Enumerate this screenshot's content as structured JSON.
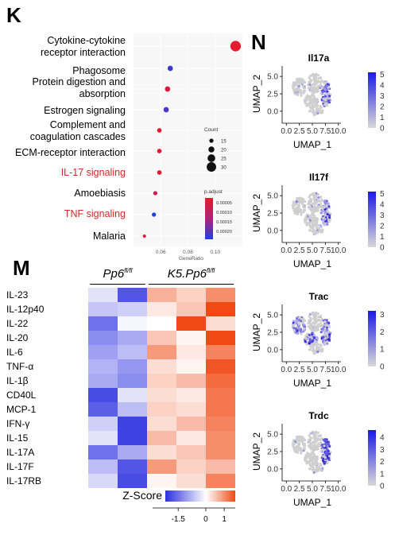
{
  "panels": {
    "K": "K",
    "M": "M",
    "N": "N"
  },
  "chart_data": [
    {
      "type": "scatter",
      "panel": "K",
      "xlabel": "GeneRatio",
      "xlim": [
        0.04,
        0.12
      ],
      "xticks": [
        "0.06",
        "0.08",
        "0.10"
      ],
      "xtick_values": [
        0.06,
        0.08,
        0.1
      ],
      "categories": [
        "Cytokine-cytokine\nreceptor interaction",
        "Phagosome",
        "Protein digestion and\nabsorption",
        "Estrogen signaling",
        "Complement and\ncoagulation cascades",
        "ECM-receptor interaction",
        "IL-17 signaling",
        "Amoebiasis",
        "TNF signaling",
        "Malaria"
      ],
      "highlighted": [
        "IL-17 signaling",
        "TNF signaling"
      ],
      "points": [
        {
          "x": 0.115,
          "count": 33,
          "padj": 5e-06
        },
        {
          "x": 0.067,
          "count": 18,
          "padj": 0.0002
        },
        {
          "x": 0.065,
          "count": 18,
          "padj": 3e-05
        },
        {
          "x": 0.064,
          "count": 18,
          "padj": 0.00019
        },
        {
          "x": 0.059,
          "count": 16,
          "padj": 1e-05
        },
        {
          "x": 0.059,
          "count": 16,
          "padj": 1e-05
        },
        {
          "x": 0.059,
          "count": 16,
          "padj": 2e-05
        },
        {
          "x": 0.056,
          "count": 15,
          "padj": 5e-05
        },
        {
          "x": 0.055,
          "count": 15,
          "padj": 0.00022
        },
        {
          "x": 0.048,
          "count": 12,
          "padj": 1e-05
        }
      ],
      "size_legend": {
        "title": "Count",
        "labels": [
          "15",
          "20",
          "25",
          "30"
        ],
        "values": [
          15,
          20,
          25,
          30
        ]
      },
      "color_legend": {
        "title": "p.adjust",
        "labels": [
          "0.00005",
          "0.00010",
          "0.00015",
          "0.00020"
        ],
        "low_color": "#e8192c",
        "high_color": "#1e3fe6"
      }
    },
    {
      "type": "heatmap",
      "panel": "M",
      "groups": [
        {
          "label_main": "Pp6",
          "label_sup": "fl/fl",
          "columns": 2
        },
        {
          "label_main": "K5.Pp6",
          "label_sup": "fl/fl",
          "columns": 3
        }
      ],
      "rows": [
        "IL-23",
        "IL-12p40",
        "IL-22",
        "IL-20",
        "IL-6",
        "TNF-α",
        "IL-1β",
        "CD40L",
        "MCP-1",
        "IFN-γ",
        "IL-15",
        "IL-17A",
        "IL-17F",
        "IL-17RB"
      ],
      "values": [
        [
          -0.3,
          -1.8,
          0.7,
          0.4,
          1.0
        ],
        [
          -0.6,
          -0.5,
          0.2,
          0.5,
          1.9
        ],
        [
          -1.5,
          -0.1,
          0.0,
          1.6,
          0.3
        ],
        [
          -1.2,
          -0.9,
          0.5,
          0.1,
          1.8
        ],
        [
          -1.0,
          -0.7,
          0.9,
          0.2,
          1.1
        ],
        [
          -0.8,
          -1.1,
          0.3,
          0.1,
          1.5
        ],
        [
          -0.9,
          -1.2,
          0.4,
          0.6,
          1.3
        ],
        [
          -1.9,
          -0.3,
          0.3,
          0.2,
          1.2
        ],
        [
          -1.7,
          -0.7,
          0.4,
          0.3,
          1.2
        ],
        [
          -0.5,
          -2.0,
          0.3,
          0.6,
          1.1
        ],
        [
          -0.3,
          -2.0,
          0.6,
          0.2,
          1.0
        ],
        [
          -1.5,
          -0.9,
          0.3,
          0.5,
          1.0
        ],
        [
          -0.7,
          -1.8,
          0.9,
          0.4,
          0.6
        ],
        [
          -0.4,
          -1.9,
          0.1,
          0.3,
          1.1
        ]
      ],
      "colorbar": {
        "title": "Z-Score",
        "ticks": [
          "-1.5",
          "0",
          "1"
        ],
        "tick_values": [
          -1.5,
          0,
          1
        ],
        "range": [
          -2.2,
          1.6
        ],
        "low_color": "#2b2fe0",
        "mid_color": "#ffffff",
        "high_color": "#f04a14"
      }
    },
    {
      "type": "scatter",
      "panel": "N",
      "plots": [
        {
          "title": "Il17a",
          "xlabel": "UMAP_1",
          "ylabel": "UMAP_2",
          "colorbar_ticks": [
            "0",
            "1",
            "2",
            "3",
            "4",
            "5"
          ],
          "vmax": 5.2
        },
        {
          "title": "Il17f",
          "xlabel": "UMAP_1",
          "ylabel": "UMAP_2",
          "colorbar_ticks": [
            "0",
            "1",
            "2",
            "3",
            "4",
            "5"
          ],
          "vmax": 5.2
        },
        {
          "title": "Trac",
          "xlabel": "UMAP_1",
          "ylabel": "UMAP_2",
          "colorbar_ticks": [
            "0",
            "1",
            "2",
            "3"
          ],
          "vmax": 3.2
        },
        {
          "title": "Trdc",
          "xlabel": "UMAP_1",
          "ylabel": "UMAP_2",
          "colorbar_ticks": [
            "0",
            "1",
            "2",
            "3",
            "4"
          ],
          "vmax": 4.6
        }
      ],
      "xticks": [
        "0.0",
        "2.5",
        "5.0",
        "7.5",
        "10.0"
      ],
      "xtick_values": [
        0.0,
        2.5,
        5.0,
        7.5,
        10.0
      ],
      "yticks": [
        "0.0",
        "2.5",
        "5.0"
      ],
      "ytick_values": [
        0.0,
        2.5,
        5.0
      ],
      "xlim": [
        -0.5,
        10.5
      ],
      "ylim": [
        -1.5,
        6.5
      ]
    }
  ]
}
